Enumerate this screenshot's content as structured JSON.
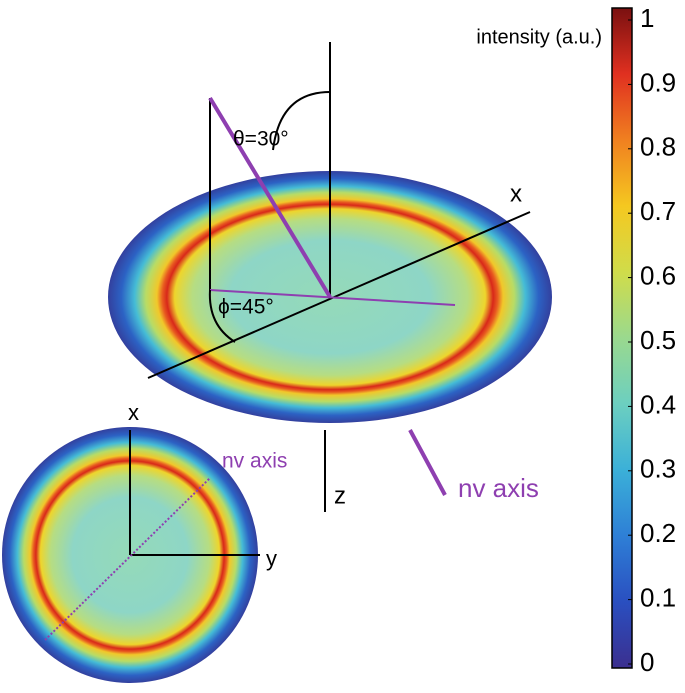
{
  "colorbar": {
    "label": "intensity (a.u.)",
    "lim": [
      0,
      1
    ],
    "ticks": [
      0,
      0.1,
      0.2,
      0.3,
      0.4,
      0.5,
      0.6,
      0.7,
      0.8,
      0.9,
      1
    ]
  },
  "annotations": {
    "theta": "θ=30°",
    "phi": "ϕ=45°",
    "x_axis": "x",
    "z_axis": "z",
    "nv_axis": "nv axis",
    "inset_x_axis": "x",
    "inset_y_axis": "y",
    "inset_nv_axis": "nv axis"
  }
}
